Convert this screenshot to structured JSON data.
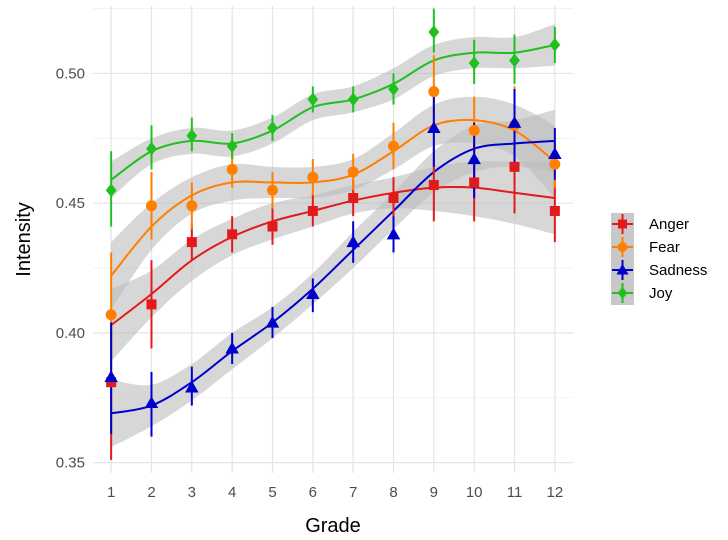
{
  "chart_data": {
    "type": "line",
    "title": "",
    "xlabel": "Grade",
    "ylabel": "Intensity",
    "x": [
      1,
      2,
      3,
      4,
      5,
      6,
      7,
      8,
      9,
      10,
      11,
      12
    ],
    "xlim": [
      0.55,
      12.45
    ],
    "ylim": [
      0.346,
      0.526
    ],
    "y_ticks": [
      0.35,
      0.4,
      0.45,
      0.5
    ],
    "y_tick_labels": [
      "0.35",
      "0.40",
      "0.45",
      "0.50"
    ],
    "x_tick_labels": [
      "1",
      "2",
      "3",
      "4",
      "5",
      "6",
      "7",
      "8",
      "9",
      "10",
      "11",
      "12"
    ],
    "grid": true,
    "legend_position": "right",
    "series": [
      {
        "name": "Anger",
        "color": "#e31a1c",
        "marker": "square",
        "values": [
          0.381,
          0.411,
          0.435,
          0.438,
          0.441,
          0.447,
          0.452,
          0.452,
          0.457,
          0.458,
          0.464,
          0.447
        ],
        "err_low": [
          0.351,
          0.394,
          0.428,
          0.431,
          0.434,
          0.441,
          0.445,
          0.444,
          0.443,
          0.443,
          0.446,
          0.435
        ],
        "err_high": [
          0.404,
          0.428,
          0.442,
          0.445,
          0.448,
          0.453,
          0.459,
          0.46,
          0.471,
          0.473,
          0.482,
          0.459
        ],
        "fit": [
          0.403,
          0.415,
          0.428,
          0.437,
          0.443,
          0.447,
          0.451,
          0.454,
          0.456,
          0.456,
          0.454,
          0.452
        ],
        "ci_low": [
          0.389,
          0.406,
          0.42,
          0.43,
          0.436,
          0.441,
          0.446,
          0.448,
          0.447,
          0.445,
          0.442,
          0.438
        ],
        "ci_high": [
          0.417,
          0.424,
          0.436,
          0.444,
          0.45,
          0.453,
          0.457,
          0.46,
          0.464,
          0.466,
          0.466,
          0.466
        ]
      },
      {
        "name": "Fear",
        "color": "#ff7f00",
        "marker": "circle",
        "values": [
          0.407,
          0.449,
          0.449,
          0.463,
          0.455,
          0.46,
          0.462,
          0.472,
          0.493,
          0.478,
          0.48,
          0.465
        ],
        "err_low": [
          0.392,
          0.436,
          0.44,
          0.456,
          0.448,
          0.453,
          0.455,
          0.463,
          0.479,
          0.465,
          0.465,
          0.456
        ],
        "err_high": [
          0.431,
          0.462,
          0.458,
          0.47,
          0.462,
          0.467,
          0.469,
          0.481,
          0.507,
          0.491,
          0.495,
          0.474
        ],
        "fit": [
          0.422,
          0.441,
          0.453,
          0.458,
          0.458,
          0.458,
          0.461,
          0.47,
          0.48,
          0.482,
          0.478,
          0.466
        ],
        "ci_low": [
          0.409,
          0.432,
          0.446,
          0.451,
          0.452,
          0.452,
          0.455,
          0.463,
          0.472,
          0.473,
          0.468,
          0.452
        ],
        "ci_high": [
          0.435,
          0.45,
          0.46,
          0.465,
          0.464,
          0.464,
          0.467,
          0.477,
          0.488,
          0.491,
          0.488,
          0.48
        ]
      },
      {
        "name": "Sadness",
        "color": "#0000cd",
        "marker": "triangle",
        "values": [
          0.383,
          0.373,
          0.379,
          0.394,
          0.404,
          0.415,
          0.435,
          0.438,
          0.479,
          0.467,
          0.481,
          0.469
        ],
        "err_low": [
          0.361,
          0.36,
          0.372,
          0.388,
          0.398,
          0.408,
          0.427,
          0.431,
          0.464,
          0.452,
          0.465,
          0.459
        ],
        "err_high": [
          0.404,
          0.385,
          0.387,
          0.4,
          0.41,
          0.421,
          0.443,
          0.445,
          0.493,
          0.481,
          0.494,
          0.479
        ],
        "fit": [
          0.369,
          0.372,
          0.381,
          0.393,
          0.404,
          0.417,
          0.432,
          0.447,
          0.462,
          0.471,
          0.473,
          0.474
        ],
        "ci_low": [
          0.356,
          0.364,
          0.374,
          0.386,
          0.398,
          0.411,
          0.425,
          0.44,
          0.454,
          0.462,
          0.464,
          0.462
        ],
        "ci_high": [
          0.382,
          0.38,
          0.388,
          0.4,
          0.41,
          0.423,
          0.439,
          0.454,
          0.47,
          0.48,
          0.482,
          0.486
        ]
      },
      {
        "name": "Joy",
        "color": "#1fc01f",
        "marker": "diamond",
        "values": [
          0.455,
          0.471,
          0.476,
          0.472,
          0.479,
          0.49,
          0.49,
          0.494,
          0.516,
          0.504,
          0.505,
          0.511
        ],
        "err_low": [
          0.441,
          0.463,
          0.47,
          0.467,
          0.474,
          0.485,
          0.485,
          0.488,
          0.508,
          0.496,
          0.496,
          0.504
        ],
        "err_high": [
          0.47,
          0.48,
          0.483,
          0.477,
          0.484,
          0.495,
          0.495,
          0.5,
          0.525,
          0.513,
          0.515,
          0.518
        ],
        "fit": [
          0.459,
          0.47,
          0.474,
          0.473,
          0.478,
          0.487,
          0.49,
          0.496,
          0.505,
          0.508,
          0.508,
          0.511
        ],
        "ci_low": [
          0.452,
          0.465,
          0.469,
          0.468,
          0.473,
          0.482,
          0.485,
          0.49,
          0.499,
          0.502,
          0.502,
          0.503
        ],
        "ci_high": [
          0.466,
          0.475,
          0.479,
          0.478,
          0.483,
          0.492,
          0.495,
          0.502,
          0.511,
          0.514,
          0.514,
          0.519
        ]
      }
    ]
  }
}
